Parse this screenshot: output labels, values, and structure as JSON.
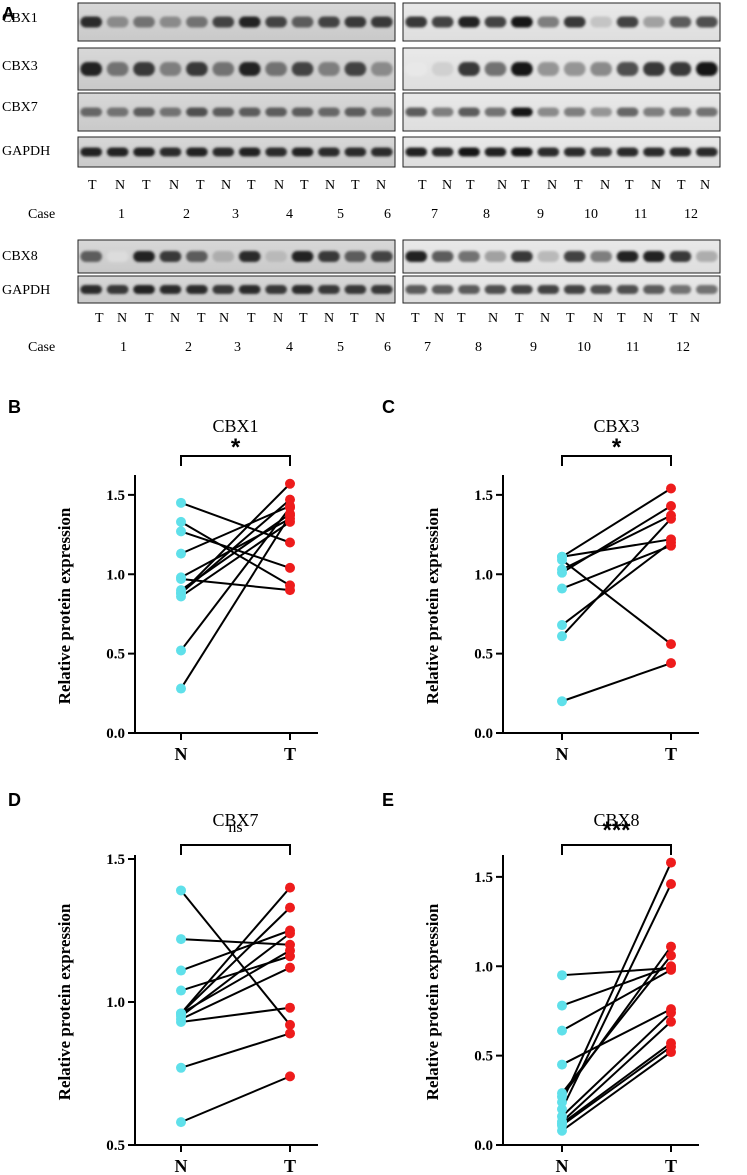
{
  "figure": {
    "panel_labels": [
      "A",
      "B",
      "C",
      "D",
      "E"
    ],
    "blot_row_labels_top": [
      "CBX1",
      "CBX3",
      "CBX7",
      "GAPDH"
    ],
    "blot_row_labels_bottom": [
      "CBX8",
      "GAPDH"
    ],
    "lane_labels": [
      "T",
      "N",
      "T",
      "N",
      "T",
      "N",
      "T",
      "N",
      "T",
      "N",
      "T",
      "N"
    ],
    "case_label": "Case",
    "cases_left": [
      "1",
      "2",
      "3",
      "4",
      "5",
      "6"
    ],
    "cases_right": [
      "7",
      "8",
      "9",
      "10",
      "11",
      "12"
    ],
    "colors": {
      "normal": "#5fe0ea",
      "tumor": "#ee1c1c",
      "line": "#000000"
    }
  },
  "chart_data": [
    {
      "panel": "B",
      "type": "scatter",
      "title": "CBX1",
      "significance": "*",
      "ylabel": "Relative protein expression",
      "categories": [
        "N",
        "T"
      ],
      "ylim": [
        0,
        1.6
      ],
      "yticks": [
        "0.0",
        "0.5",
        "1.0",
        "1.5"
      ],
      "pairs": [
        [
          0.28,
          1.37
        ],
        [
          0.52,
          1.42
        ],
        [
          0.86,
          1.33
        ],
        [
          0.88,
          1.47
        ],
        [
          0.98,
          1.35
        ],
        [
          1.13,
          1.43
        ],
        [
          1.27,
          1.04
        ],
        [
          1.33,
          0.93
        ],
        [
          1.45,
          1.2
        ],
        [
          0.88,
          1.57
        ],
        [
          0.97,
          0.9
        ],
        [
          0.9,
          1.38
        ]
      ]
    },
    {
      "panel": "C",
      "type": "scatter",
      "title": "CBX3",
      "significance": "*",
      "ylabel": "Relative protein expression",
      "categories": [
        "N",
        "T"
      ],
      "ylim": [
        0,
        1.6
      ],
      "yticks": [
        "0.0",
        "0.5",
        "1.0",
        "1.5"
      ],
      "pairs": [
        [
          0.2,
          0.44
        ],
        [
          0.61,
          1.35
        ],
        [
          0.68,
          1.2
        ],
        [
          0.91,
          1.18
        ],
        [
          1.01,
          1.43
        ],
        [
          1.09,
          0.56
        ],
        [
          1.11,
          1.22
        ],
        [
          1.03,
          1.37
        ],
        [
          1.11,
          1.54
        ]
      ]
    },
    {
      "panel": "D",
      "type": "scatter",
      "title": "CBX7",
      "significance": "ns",
      "ylabel": "Relative protein expression",
      "categories": [
        "N",
        "T"
      ],
      "ylim": [
        0.5,
        1.5
      ],
      "yticks": [
        "0.5",
        "1.0",
        "1.5"
      ],
      "pairs": [
        [
          0.58,
          0.74
        ],
        [
          0.77,
          0.89
        ],
        [
          0.93,
          0.98
        ],
        [
          0.94,
          1.12
        ],
        [
          0.95,
          1.24
        ],
        [
          0.96,
          1.33
        ],
        [
          0.96,
          1.4
        ],
        [
          0.96,
          1.18
        ],
        [
          1.04,
          1.16
        ],
        [
          1.11,
          1.25
        ],
        [
          1.22,
          1.2
        ],
        [
          1.39,
          0.92
        ]
      ]
    },
    {
      "panel": "E",
      "type": "scatter",
      "title": "CBX8",
      "significance": "***",
      "ylabel": "Relative protein expression",
      "categories": [
        "N",
        "T"
      ],
      "ylim": [
        0,
        1.6
      ],
      "yticks": [
        "0.0",
        "0.5",
        "1.0",
        "1.5"
      ],
      "pairs": [
        [
          0.08,
          0.52
        ],
        [
          0.11,
          0.55
        ],
        [
          0.13,
          0.69
        ],
        [
          0.16,
          0.74
        ],
        [
          0.2,
          1.46
        ],
        [
          0.24,
          1.58
        ],
        [
          0.27,
          1.11
        ],
        [
          0.29,
          1.06
        ],
        [
          0.45,
          0.76
        ],
        [
          0.64,
          0.98
        ],
        [
          0.78,
          1.0
        ],
        [
          0.95,
          0.99
        ],
        [
          0.12,
          0.57
        ]
      ]
    }
  ]
}
